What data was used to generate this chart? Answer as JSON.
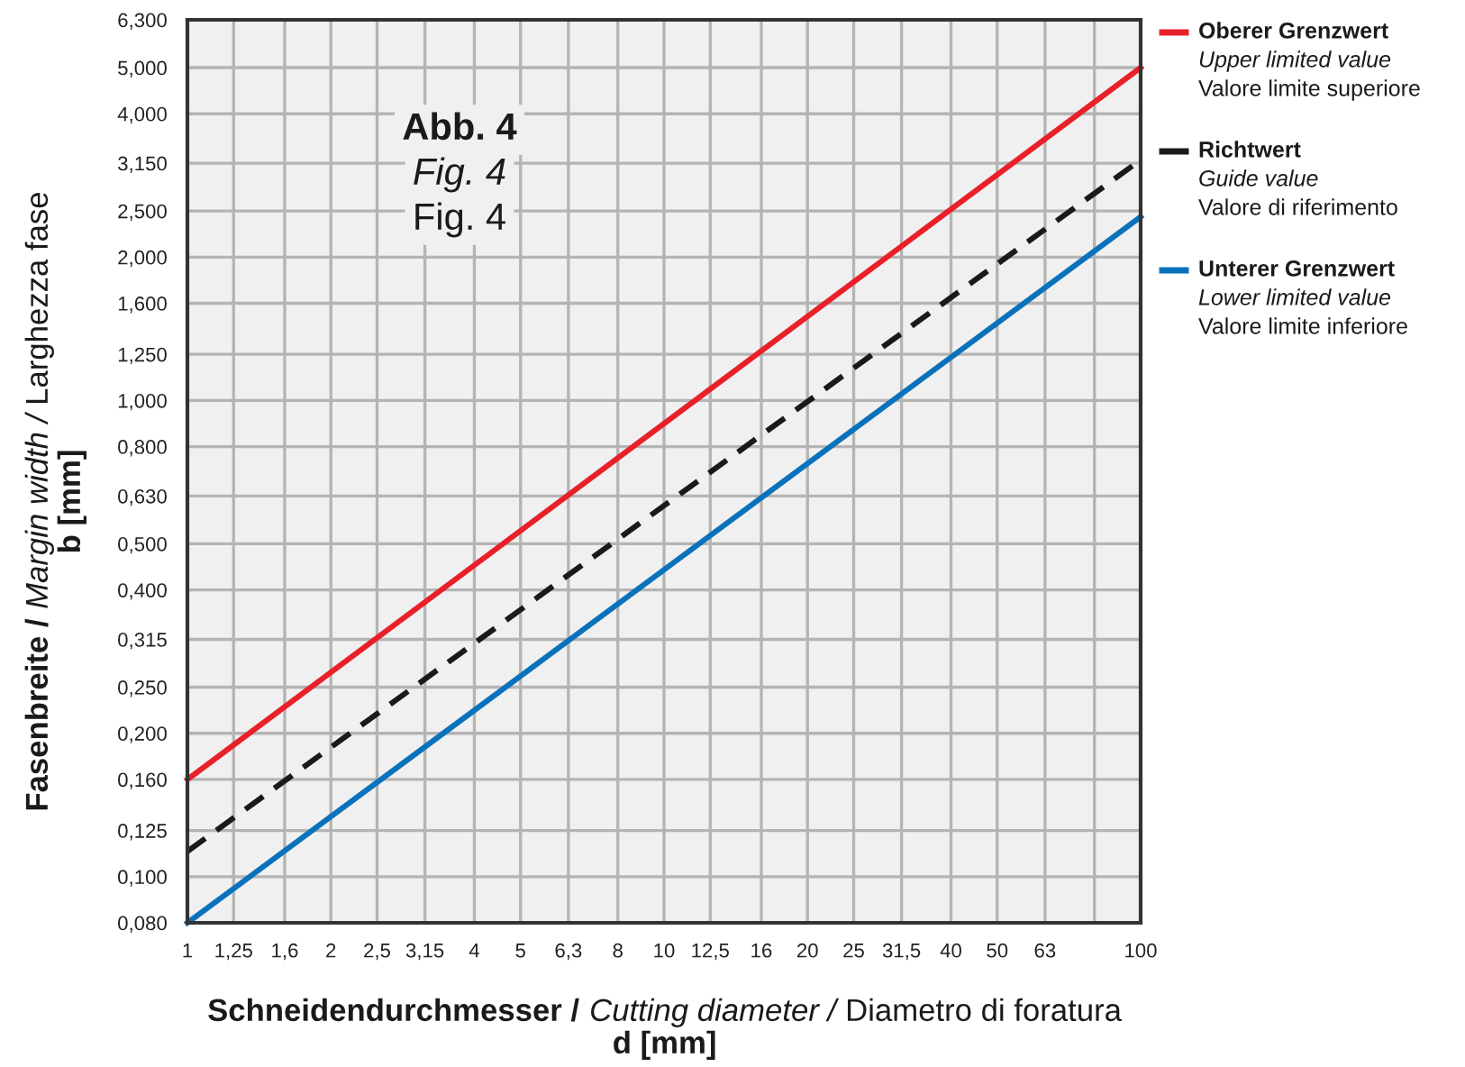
{
  "chart_data": {
    "type": "line",
    "log": "xy",
    "grid": true,
    "legend": "right",
    "xlabel": "Schneidendurchmesser / Cutting diameter / Diametro di foratura\nd [mm]",
    "ylabel": "Fasenbreite / Margin width / Larghezza fase\nb [mm]",
    "annotations": [
      "Abb. 4",
      "Fig. 4",
      "Fig. 4"
    ],
    "xlim": [
      1,
      100
    ],
    "ylim": [
      0.08,
      6.3
    ],
    "xticks": [
      1,
      {
        "value": 1.25,
        "label": "1,25"
      },
      {
        "value": 1.6,
        "label": "1,6"
      },
      2,
      {
        "value": 2.5,
        "label": "2,5"
      },
      {
        "value": 3.15,
        "label": "3,15"
      },
      4,
      5,
      {
        "value": 6.3,
        "label": "6,3"
      },
      8,
      10,
      {
        "value": 12.5,
        "label": "12,5"
      },
      16,
      20,
      25,
      {
        "value": 31.5,
        "label": "31,5"
      },
      40,
      50,
      63,
      {
        "value": 80,
        "label": null
      },
      100
    ],
    "yticks": [
      {
        "value": 0.08,
        "label": "0,080"
      },
      {
        "value": 0.1,
        "label": "0,100"
      },
      {
        "value": 0.125,
        "label": "0,125"
      },
      {
        "value": 0.16,
        "label": "0,160"
      },
      {
        "value": 0.2,
        "label": "0,200"
      },
      {
        "value": 0.25,
        "label": "0,250"
      },
      {
        "value": 0.315,
        "label": "0,315"
      },
      {
        "value": 0.4,
        "label": "0,400"
      },
      {
        "value": 0.5,
        "label": "0,500"
      },
      {
        "value": 0.63,
        "label": "0,630"
      },
      {
        "value": 0.8,
        "label": "0,800"
      },
      {
        "value": 1,
        "label": "1,000"
      },
      {
        "value": 1.25,
        "label": "1,250"
      },
      {
        "value": 1.6,
        "label": "1,600"
      },
      {
        "value": 2,
        "label": "2,000"
      },
      {
        "value": 2.5,
        "label": "2,500"
      },
      {
        "value": 3.15,
        "label": "3,150"
      },
      {
        "value": 4,
        "label": "4,000"
      },
      {
        "value": 5,
        "label": "5,000"
      },
      {
        "value": 6.3,
        "label": "6,300"
      }
    ],
    "x": [
      1,
      100
    ],
    "series": [
      {
        "name": "Oberer Grenzwert\nUpper limited value\nValore limite superiore",
        "color": "#e8202a",
        "values": [
          0.16,
          5.0
        ],
        "line_style": "solid"
      },
      {
        "name": "Richtwert\nGuide value\nValore di riferimento",
        "color": "#1a1a1a",
        "values": [
          0.113,
          3.2
        ],
        "line_style": "dashed"
      },
      {
        "name": "Unterer Grenzwert\nLower limited value\nValore limite inferiore",
        "color": "#0a72bb",
        "values": [
          0.08,
          2.43
        ],
        "line_style": "solid"
      }
    ]
  }
}
